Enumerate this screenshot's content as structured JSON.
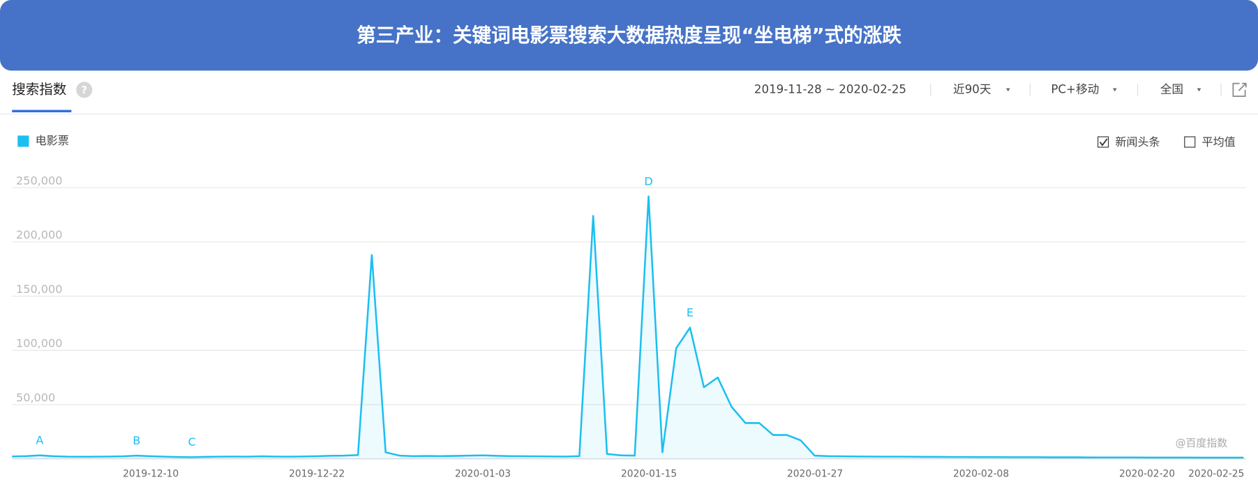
{
  "header": {
    "title": "第三产业：关键词电影票搜索大数据热度呈现“坐电梯”式的涨跌"
  },
  "toolbar": {
    "tab": "搜索指数",
    "help": "?",
    "date_range": "2019-11-28 ~ 2020-02-25",
    "period": "近90天",
    "device": "PC+移动",
    "region": "全国"
  },
  "options": {
    "news": "新闻头条",
    "average": "平均值"
  },
  "watermark": "@百度指数",
  "chart_data": {
    "type": "line",
    "x": [
      "2019-11-28",
      "2019-11-29",
      "2019-11-30",
      "2019-12-01",
      "2019-12-02",
      "2019-12-03",
      "2019-12-04",
      "2019-12-05",
      "2019-12-06",
      "2019-12-07",
      "2019-12-08",
      "2019-12-09",
      "2019-12-10",
      "2019-12-11",
      "2019-12-12",
      "2019-12-13",
      "2019-12-14",
      "2019-12-15",
      "2019-12-16",
      "2019-12-17",
      "2019-12-18",
      "2019-12-19",
      "2019-12-20",
      "2019-12-21",
      "2019-12-22",
      "2019-12-23",
      "2019-12-24",
      "2019-12-25",
      "2019-12-26",
      "2019-12-27",
      "2019-12-28",
      "2019-12-29",
      "2019-12-30",
      "2019-12-31",
      "2020-01-01",
      "2020-01-02",
      "2020-01-03",
      "2020-01-04",
      "2020-01-05",
      "2020-01-06",
      "2020-01-07",
      "2020-01-08",
      "2020-01-09",
      "2020-01-10",
      "2020-01-11",
      "2020-01-12",
      "2020-01-13",
      "2020-01-14",
      "2020-01-15",
      "2020-01-16",
      "2020-01-17",
      "2020-01-18",
      "2020-01-19",
      "2020-01-20",
      "2020-01-21",
      "2020-01-22",
      "2020-01-23",
      "2020-01-24",
      "2020-01-25",
      "2020-01-26",
      "2020-01-27",
      "2020-01-28",
      "2020-01-29",
      "2020-01-30",
      "2020-01-31",
      "2020-02-01",
      "2020-02-02",
      "2020-02-03",
      "2020-02-04",
      "2020-02-05",
      "2020-02-06",
      "2020-02-07",
      "2020-02-08",
      "2020-02-09",
      "2020-02-10",
      "2020-02-11",
      "2020-02-12",
      "2020-02-13",
      "2020-02-14",
      "2020-02-15",
      "2020-02-16",
      "2020-02-17",
      "2020-02-18",
      "2020-02-19",
      "2020-02-20",
      "2020-02-21",
      "2020-02-22",
      "2020-02-23",
      "2020-02-24",
      "2020-02-25"
    ],
    "series": [
      {
        "name": "电影票",
        "color": "#1bbff0",
        "values": [
          2200,
          2500,
          3200,
          2400,
          2000,
          1900,
          2000,
          2100,
          2300,
          3000,
          2400,
          2000,
          1700,
          1500,
          1800,
          2000,
          2100,
          2000,
          2300,
          2100,
          2000,
          2200,
          2400,
          2800,
          3000,
          3500,
          188000,
          6000,
          3000,
          2500,
          2600,
          2500,
          2700,
          3000,
          3200,
          2800,
          2500,
          2400,
          2300,
          2200,
          2100,
          2500,
          224000,
          4500,
          3200,
          3000,
          242000,
          6000,
          102000,
          121000,
          66000,
          75000,
          48000,
          33000,
          33000,
          22000,
          22000,
          17000,
          3000,
          2500,
          2300,
          2200,
          2100,
          2000,
          2000,
          1900,
          1800,
          1800,
          1700,
          1700,
          1600,
          1600,
          1500,
          1500,
          1500,
          1400,
          1400,
          1400,
          1300,
          1300,
          1300,
          1300,
          1200,
          1200,
          1200,
          1200,
          1100,
          1100,
          1100,
          1100
        ]
      }
    ],
    "xlim": [
      "2019-11-28",
      "2020-02-25"
    ],
    "xticks": [
      "2019-12-10",
      "2019-12-22",
      "2020-01-03",
      "2020-01-15",
      "2020-01-27",
      "2020-02-08",
      "2020-02-20",
      "2020-02-25"
    ],
    "ylim": [
      0,
      250000
    ],
    "yticks": [
      {
        "value": 50000,
        "label": "50,000"
      },
      {
        "value": 100000,
        "label": "100,000"
      },
      {
        "value": 150000,
        "label": "150,000"
      },
      {
        "value": 200000,
        "label": "200,000"
      },
      {
        "value": 250000,
        "label": "250,000"
      }
    ],
    "grid": true,
    "annotations": [
      {
        "label": "A",
        "x": "2019-11-30"
      },
      {
        "label": "B",
        "x": "2019-12-07"
      },
      {
        "label": "C",
        "x": "2019-12-11"
      },
      {
        "label": "D",
        "x": "2020-01-13"
      },
      {
        "label": "E",
        "x": "2020-01-16"
      }
    ]
  }
}
